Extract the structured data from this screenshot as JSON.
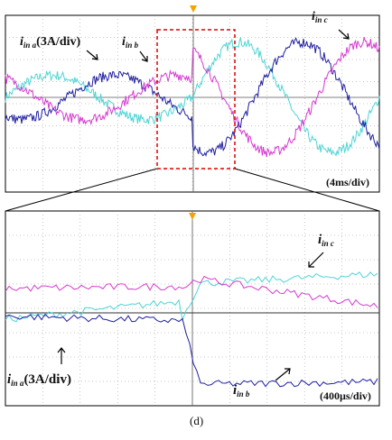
{
  "figure_label": "(d)",
  "colors": {
    "phase_a": "#4fd4d4",
    "phase_b": "#1f1fa0",
    "phase_c": "#d63ad0",
    "grid": "#909090",
    "zoom_box": "#e00000",
    "trigger": "#f4a300"
  },
  "labels": {
    "i_a_main": "i",
    "i_a_sub": "in a",
    "i_a_scale": "(3A/div)",
    "i_b_main": "i",
    "i_b_sub": "in b",
    "i_c_main": "i",
    "i_c_sub": "in c"
  },
  "chart_data": [
    {
      "type": "line",
      "panel": "overview",
      "time_per_div": "(4ms/div)",
      "current_per_div": "3A/div",
      "grid": true,
      "divisions": {
        "x": 10,
        "y": 8
      },
      "x_unit": "ms",
      "xlim": [
        0,
        40
      ],
      "ylim": [
        -12,
        12
      ],
      "series": [
        {
          "name": "i_in a",
          "amplitude_before": 3.0,
          "amplitude_after": 7.5,
          "step_time": 20,
          "frequency_hz": 50,
          "phase_deg": 0
        },
        {
          "name": "i_in b",
          "amplitude_before": 3.0,
          "amplitude_after": 7.5,
          "step_time": 20,
          "frequency_hz": 50,
          "phase_deg": -120
        },
        {
          "name": "i_in c",
          "amplitude_before": 3.0,
          "amplitude_after": 7.5,
          "step_time": 20,
          "frequency_hz": 50,
          "phase_deg": 120
        }
      ]
    },
    {
      "type": "line",
      "panel": "zoom",
      "time_per_div": "(400µs/div)",
      "current_per_div": "3A/div",
      "grid": true,
      "x_unit": "µs",
      "xlim": [
        0,
        4000
      ],
      "series": [
        {
          "name": "i_in a",
          "before_level": -0.8,
          "after_level": 3.6
        },
        {
          "name": "i_in b",
          "before_level": -0.4,
          "after_level": -8.8
        },
        {
          "name": "i_in c",
          "before_level": 3.0,
          "after_level": 4.3
        }
      ]
    }
  ]
}
